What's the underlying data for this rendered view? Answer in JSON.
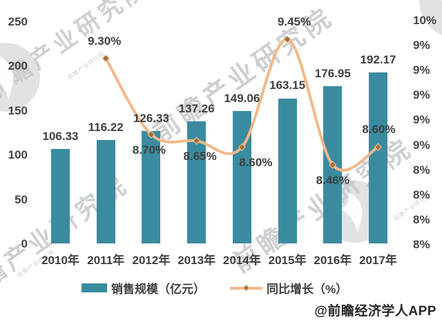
{
  "chart_data": {
    "type": "bar+line combo",
    "categories": [
      "2010年",
      "2011年",
      "2012年",
      "2013年",
      "2014年",
      "2015年",
      "2016年",
      "2017年"
    ],
    "series": [
      {
        "name": "销售规模（亿元）",
        "type": "bar",
        "color": "#3b8ba0",
        "values": [
          106.33,
          116.22,
          126.33,
          137.26,
          149.06,
          163.15,
          176.95,
          192.17
        ],
        "labels": [
          "106.33",
          "116.22",
          "126.33",
          "137.26",
          "149.06",
          "163.15",
          "176.95",
          "192.17"
        ]
      },
      {
        "name": "同比增长（%）",
        "type": "line",
        "color": "#f3b888",
        "marker_color": "#aa6f35",
        "values": [
          null,
          9.3,
          8.7,
          8.65,
          8.6,
          9.45,
          8.46,
          8.6
        ],
        "labels": [
          "",
          "9.30%",
          "8.70%",
          "8.65%",
          "8.60%",
          "9.45%",
          "8.46%",
          "8.60%"
        ],
        "label_side": [
          "",
          "above",
          "below",
          "below",
          "below",
          "above",
          "below",
          "above"
        ]
      }
    ],
    "left_axis": {
      "min": 0,
      "max": 250,
      "ticks": [
        "250",
        "200",
        "150",
        "100",
        "50",
        "0"
      ]
    },
    "right_axis": {
      "min": "8%",
      "max": "10%",
      "ticks": [
        "10%",
        "9%",
        "9%",
        "9%",
        "9%",
        "9%",
        "8%",
        "8%",
        "8%",
        "8%"
      ]
    },
    "legend_position": "bottom",
    "grid": false
  },
  "watermark": {
    "text": "前瞻产业研究院"
  },
  "credit": "@前瞻经济学人APP"
}
